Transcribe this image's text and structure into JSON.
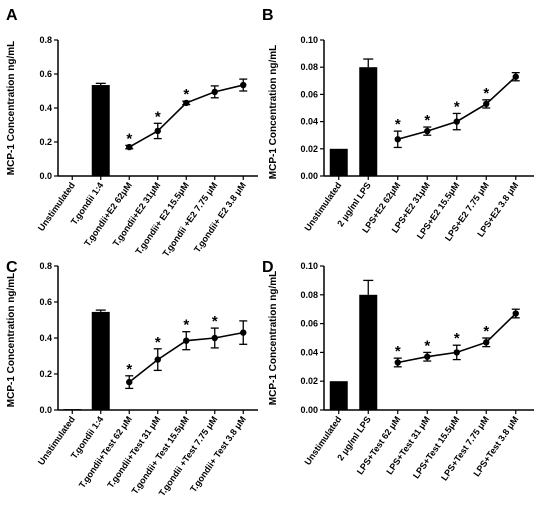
{
  "chart_data": [
    {
      "type": "bar",
      "panel_label": "A",
      "ylabel": "MCP-1 Concentration ng/mL",
      "ylim": [
        0,
        0.8
      ],
      "yticks": [
        "0.0",
        "0.2",
        "0.4",
        "0.6",
        "0.8"
      ],
      "categories": [
        "Unstimulated",
        "T.gondii 1:4",
        "T.gondii+E2 62μM",
        "T.gondii+E2 31μM",
        "T.gondii+ E2 15.5μM",
        "T.gondii +E2 7.75 μM",
        "T.gondii+ E2 3.8 μM"
      ],
      "bar_values": [
        0,
        0.535,
        null,
        null,
        null,
        null,
        null
      ],
      "bar_errors": [
        0,
        0.01,
        null,
        null,
        null,
        null,
        null
      ],
      "line_values": [
        null,
        null,
        0.17,
        0.265,
        0.43,
        0.495,
        0.535
      ],
      "line_errors": [
        null,
        null,
        0.01,
        0.045,
        0.01,
        0.035,
        0.035
      ],
      "significance": [
        null,
        null,
        "*",
        "*",
        "*",
        null,
        null
      ]
    },
    {
      "type": "bar",
      "panel_label": "B",
      "ylabel": "MCP-1 Concentration ng/mL",
      "ylim": [
        0,
        0.1
      ],
      "yticks": [
        "0.00",
        "0.02",
        "0.04",
        "0.06",
        "0.08",
        "0.10"
      ],
      "categories": [
        "Unstimulated",
        "2 μg/ml LPS",
        "LPS+E2 62μM",
        "LPS+E2 31μM",
        "LPS+E2 15.5μM",
        "LPS+E2 7.75 μM",
        "LPS+E2 3.8 μM"
      ],
      "bar_values": [
        0.02,
        0.08,
        null,
        null,
        null,
        null,
        null
      ],
      "bar_errors": [
        0,
        0.006,
        null,
        null,
        null,
        null,
        null
      ],
      "line_values": [
        null,
        null,
        0.027,
        0.033,
        0.04,
        0.053,
        0.073
      ],
      "line_errors": [
        null,
        null,
        0.006,
        0.003,
        0.006,
        0.003,
        0.003
      ],
      "significance": [
        null,
        null,
        "*",
        "*",
        "*",
        "*",
        null
      ]
    },
    {
      "type": "bar",
      "panel_label": "C",
      "ylabel": "MCP-1 Concentration ng/mL",
      "ylim": [
        0,
        0.8
      ],
      "yticks": [
        "0.0",
        "0.2",
        "0.4",
        "0.6",
        "0.8"
      ],
      "categories": [
        "Unstimulated",
        "T.gondii 1:4",
        "T.gondii+Test 62 μM",
        "T.gondii+Test 31 μM",
        "T.gondii+ Test 15.5μM",
        "T.gondii +Test 7.75 μM",
        "T.gondii+ Test 3.8 μM"
      ],
      "bar_values": [
        0.005,
        0.545,
        null,
        null,
        null,
        null,
        null
      ],
      "bar_errors": [
        0,
        0.01,
        null,
        null,
        null,
        null,
        null
      ],
      "line_values": [
        null,
        null,
        0.155,
        0.28,
        0.385,
        0.4,
        0.43
      ],
      "line_errors": [
        null,
        null,
        0.035,
        0.06,
        0.05,
        0.055,
        0.065
      ],
      "significance": [
        null,
        null,
        "*",
        "*",
        "*",
        "*",
        null
      ]
    },
    {
      "type": "bar",
      "panel_label": "D",
      "ylabel": "MCP-1 Concentration ng/mL",
      "ylim": [
        0,
        0.1
      ],
      "yticks": [
        "0.00",
        "0.02",
        "0.04",
        "0.06",
        "0.08",
        "0.10"
      ],
      "categories": [
        "Unstimulated",
        "2 μg/ml LPS",
        "LPS+Test 62 μM",
        "LPS+Test 31 μM",
        "LPS+Test 15.5μM",
        "LPS+Test 7.75 μM",
        "LPS+Test 3.8 μM"
      ],
      "bar_values": [
        0.02,
        0.08,
        null,
        null,
        null,
        null,
        null
      ],
      "bar_errors": [
        0,
        0.01,
        null,
        null,
        null,
        null,
        null
      ],
      "line_values": [
        null,
        null,
        0.033,
        0.037,
        0.04,
        0.047,
        0.067
      ],
      "line_errors": [
        null,
        null,
        0.003,
        0.003,
        0.005,
        0.003,
        0.003
      ],
      "significance": [
        null,
        null,
        "*",
        "*",
        "*",
        "*",
        null
      ]
    }
  ]
}
